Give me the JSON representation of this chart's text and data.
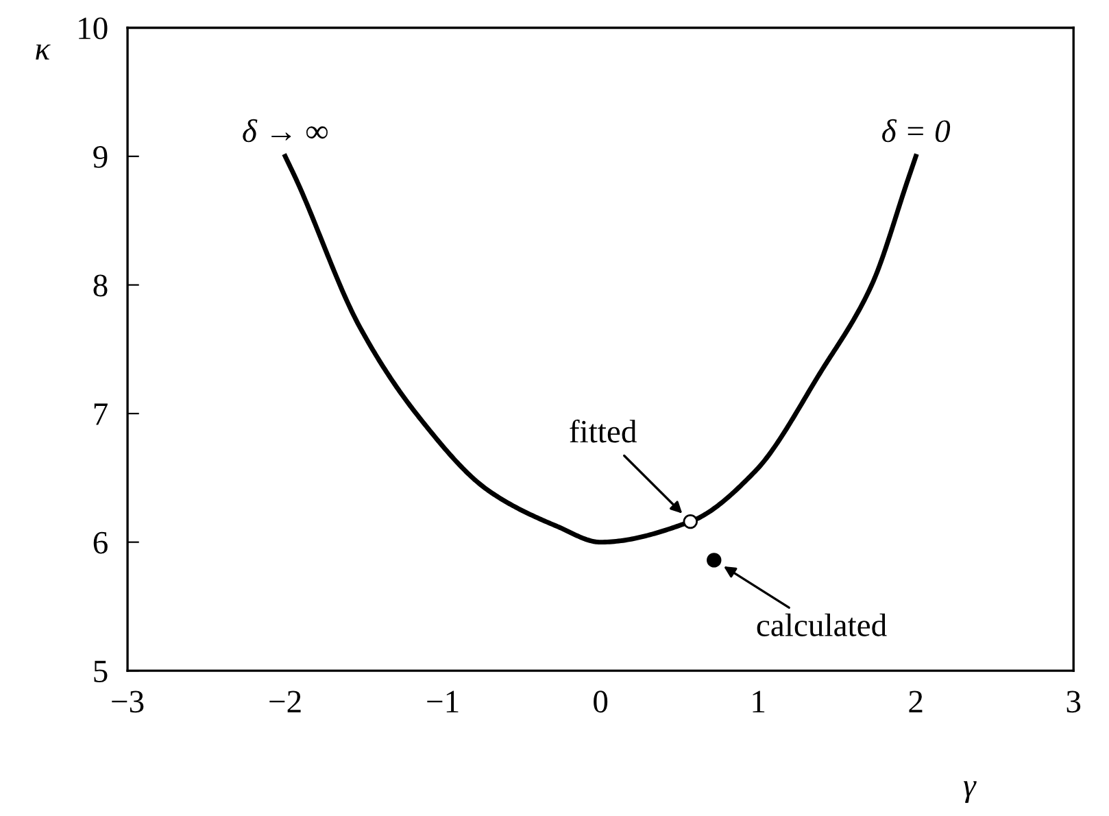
{
  "chart_data": {
    "type": "line",
    "xlabel": "γ",
    "ylabel": "κ",
    "xlim": [
      -3,
      3
    ],
    "ylim": [
      5,
      10
    ],
    "xticks": [
      {
        "value": -3,
        "label": "−3"
      },
      {
        "value": -2,
        "label": "−2"
      },
      {
        "value": -1,
        "label": "−1"
      },
      0,
      1,
      2,
      3
    ],
    "yticks": [
      5,
      6,
      7,
      8,
      9,
      10
    ],
    "grid": false,
    "series": [
      {
        "color": "#000000",
        "x": [
          -2,
          -1.93,
          -1.53,
          -1.15,
          -0.71,
          -0.27,
          0,
          0.57,
          0.98,
          1.4,
          1.72,
          1.95,
          2
        ],
        "values": [
          9,
          8.82,
          7.68,
          6.97,
          6.4,
          6.12,
          6,
          6.16,
          6.55,
          7.33,
          8.0,
          8.82,
          9
        ]
      },
      {
        "type": "scatter",
        "color": "#ffffff",
        "marker": "circle",
        "x": [
          0.57
        ],
        "values": [
          6.16
        ]
      },
      {
        "type": "scatter",
        "color": "#000000",
        "marker": "circle",
        "x": [
          0.72
        ],
        "values": [
          5.86
        ]
      }
    ],
    "annotations": [
      {
        "text": "δ → ∞",
        "x": -2,
        "y": 9
      },
      {
        "text": "δ = 0",
        "x": 2,
        "y": 9
      },
      {
        "text": "fitted",
        "x": 0.57,
        "y": 6.16
      },
      {
        "text": "calculated",
        "x": 0.72,
        "y": 5.86
      }
    ]
  }
}
